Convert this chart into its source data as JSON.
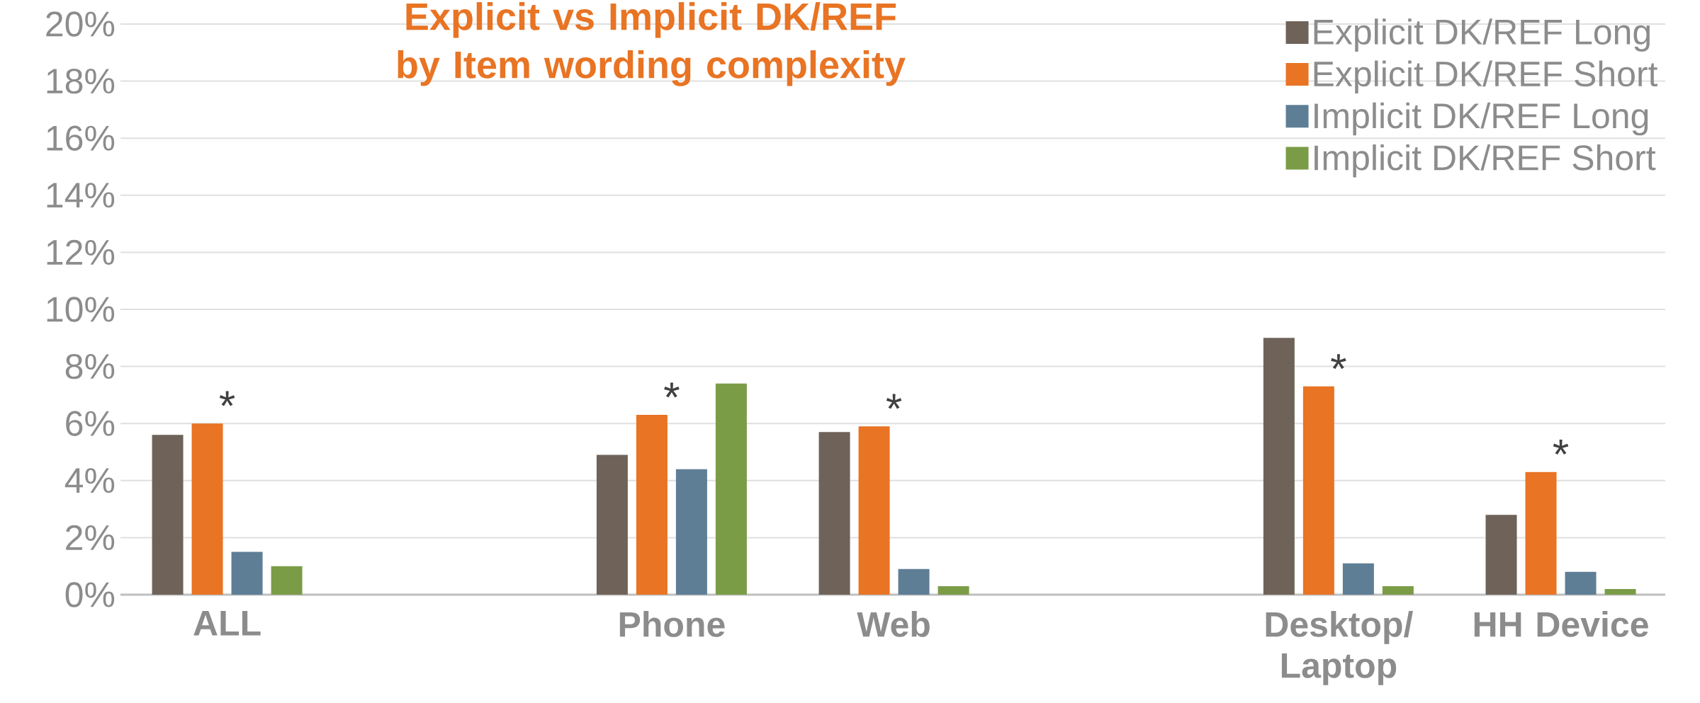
{
  "chart_data": {
    "type": "bar",
    "title": "Explicit vs Implicit  DK/REF by Item wording complexity",
    "categories": [
      "ALL",
      null,
      "Phone",
      "Web",
      null,
      "Desktop/ Laptop",
      "HH Device"
    ],
    "series": [
      {
        "name": "Explicit DK/REF Long",
        "color": "#6f6359",
        "values": [
          5.6,
          null,
          4.9,
          5.7,
          null,
          9.0,
          2.8
        ]
      },
      {
        "name": "Explicit DK/REF Short",
        "color": "#e87424",
        "values": [
          6.0,
          null,
          6.3,
          5.9,
          null,
          7.3,
          4.3
        ]
      },
      {
        "name": "Implicit DK/REF Long",
        "color": "#5e7e96",
        "values": [
          1.5,
          null,
          4.4,
          0.9,
          null,
          1.1,
          0.8
        ]
      },
      {
        "name": "Implicit DK/REF Short",
        "color": "#7b9c47",
        "values": [
          1.0,
          null,
          7.4,
          0.3,
          null,
          0.3,
          0.2
        ]
      }
    ],
    "ylim": [
      0,
      20
    ],
    "yticks": [
      {
        "value": 0,
        "label": "0%"
      },
      {
        "value": 2,
        "label": "2%"
      },
      {
        "value": 4,
        "label": "4%"
      },
      {
        "value": 6,
        "label": "6%"
      },
      {
        "value": 8,
        "label": "8%"
      },
      {
        "value": 10,
        "label": "10%"
      },
      {
        "value": 12,
        "label": "12%"
      },
      {
        "value": 14,
        "label": "14%"
      },
      {
        "value": 16,
        "label": "16%"
      },
      {
        "value": 18,
        "label": "18%"
      },
      {
        "value": 20,
        "label": "20%"
      }
    ],
    "grid": "y",
    "legend": "top right",
    "annotations": [
      "*",
      "*",
      "*",
      "*",
      "*"
    ]
  }
}
